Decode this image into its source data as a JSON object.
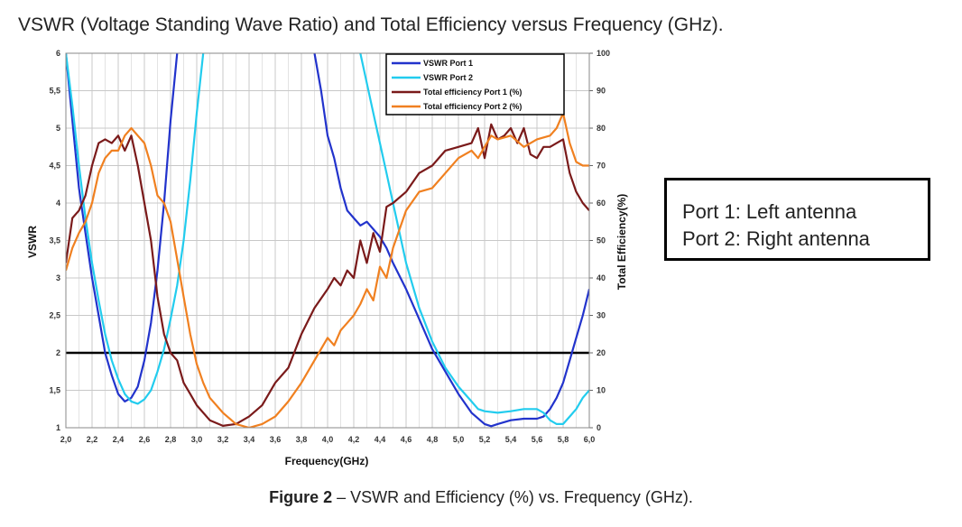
{
  "page": {
    "title": "VSWR (Voltage Standing Wave Ratio) and Total Efficiency versus Frequency (GHz).",
    "note_lines": [
      "Port 1: Left antenna",
      "Port 2: Right antenna"
    ],
    "caption_bold": "Figure 2",
    "caption_rest": " – VSWR and Efficiency (%) vs. Frequency (GHz)."
  },
  "chart_data": {
    "type": "line",
    "title": "",
    "xlabel": "Frequency(GHz)",
    "ylabel": "VSWR",
    "y2label": "Total Efficiency(%)",
    "xlim": [
      2.0,
      6.0
    ],
    "ylim": [
      1,
      6
    ],
    "y2lim": [
      0,
      100
    ],
    "x_ticks": [
      "2,0",
      "2,2",
      "2,4",
      "2,6",
      "2,8",
      "3,0",
      "3,2",
      "3,4",
      "3,6",
      "3,8",
      "4,0",
      "4,2",
      "4,4",
      "4,6",
      "4,8",
      "5,0",
      "5,2",
      "5,4",
      "5,6",
      "5,8",
      "6,0"
    ],
    "y_ticks": [
      "1",
      "1,5",
      "2",
      "2,5",
      "3",
      "3,5",
      "4",
      "4,5",
      "5",
      "5,5",
      "6"
    ],
    "y2_ticks": [
      "0",
      "10",
      "20",
      "30",
      "40",
      "50",
      "60",
      "70",
      "80",
      "90",
      "100"
    ],
    "grid": true,
    "legend_position": "top-right",
    "reference_line": {
      "axis": "left",
      "value": 2.0,
      "color": "#000000"
    },
    "series": [
      {
        "name": "VSWR Port 1",
        "axis": "left",
        "color": "#2233cc",
        "x": [
          2.0,
          2.05,
          2.1,
          2.15,
          2.2,
          2.25,
          2.3,
          2.35,
          2.4,
          2.45,
          2.5,
          2.55,
          2.6,
          2.65,
          2.7,
          2.75,
          2.8,
          2.85
        ],
        "y": [
          6.0,
          5.1,
          4.2,
          3.6,
          3.0,
          2.5,
          2.0,
          1.7,
          1.45,
          1.35,
          1.4,
          1.55,
          1.9,
          2.4,
          3.1,
          4.0,
          5.1,
          6.0
        ],
        "x2": [
          3.9,
          3.95,
          4.0,
          4.05,
          4.1,
          4.15,
          4.2,
          4.25,
          4.3,
          4.35,
          4.4,
          4.45,
          4.5,
          4.6,
          4.7,
          4.8,
          4.9,
          5.0,
          5.1,
          5.2,
          5.25,
          5.3,
          5.4,
          5.5,
          5.6,
          5.65,
          5.7,
          5.75,
          5.8,
          5.85,
          5.9,
          5.95,
          6.0
        ],
        "y2": [
          6.0,
          5.5,
          4.9,
          4.6,
          4.2,
          3.9,
          3.8,
          3.7,
          3.75,
          3.65,
          3.55,
          3.4,
          3.2,
          2.85,
          2.45,
          2.05,
          1.75,
          1.45,
          1.2,
          1.05,
          1.02,
          1.05,
          1.1,
          1.12,
          1.12,
          1.15,
          1.25,
          1.4,
          1.6,
          1.9,
          2.2,
          2.5,
          2.85
        ]
      },
      {
        "name": "VSWR Port 2",
        "axis": "left",
        "color": "#22ccee",
        "x": [
          2.0,
          2.05,
          2.1,
          2.15,
          2.2,
          2.25,
          2.3,
          2.35,
          2.4,
          2.45,
          2.5,
          2.55,
          2.6,
          2.65,
          2.7,
          2.75,
          2.8,
          2.85,
          2.9,
          2.95,
          3.0,
          3.05
        ],
        "y": [
          6.0,
          5.3,
          4.5,
          3.8,
          3.2,
          2.7,
          2.25,
          1.9,
          1.65,
          1.45,
          1.35,
          1.32,
          1.38,
          1.5,
          1.75,
          2.05,
          2.45,
          2.9,
          3.5,
          4.3,
          5.2,
          6.0
        ],
        "x2": [
          4.25,
          4.3,
          4.35,
          4.4,
          4.45,
          4.5,
          4.55,
          4.6,
          4.7,
          4.8,
          4.9,
          5.0,
          5.1,
          5.15,
          5.2,
          5.3,
          5.4,
          5.5,
          5.6,
          5.65,
          5.7,
          5.75,
          5.8,
          5.85,
          5.9,
          5.95,
          6.0
        ],
        "y2": [
          6.0,
          5.6,
          5.2,
          4.8,
          4.4,
          4.0,
          3.6,
          3.2,
          2.6,
          2.15,
          1.8,
          1.55,
          1.35,
          1.25,
          1.22,
          1.2,
          1.22,
          1.25,
          1.25,
          1.2,
          1.1,
          1.05,
          1.05,
          1.15,
          1.25,
          1.4,
          1.5
        ]
      },
      {
        "name": "Total efficiency Port 1 (%)",
        "axis": "right",
        "color": "#7a1a1a",
        "x": [
          2.0,
          2.05,
          2.1,
          2.15,
          2.2,
          2.25,
          2.3,
          2.35,
          2.4,
          2.45,
          2.5,
          2.55,
          2.6,
          2.65,
          2.7,
          2.75,
          2.8,
          2.85,
          2.9,
          2.95,
          3.0,
          3.1,
          3.2,
          3.3,
          3.4,
          3.5,
          3.6,
          3.7,
          3.8,
          3.9,
          4.0,
          4.05,
          4.1,
          4.15,
          4.2,
          4.25,
          4.3,
          4.35,
          4.4,
          4.45,
          4.5,
          4.6,
          4.7,
          4.8,
          4.9,
          5.0,
          5.1,
          5.15,
          5.2,
          5.25,
          5.3,
          5.35,
          5.4,
          5.45,
          5.5,
          5.55,
          5.6,
          5.65,
          5.7,
          5.75,
          5.8,
          5.85,
          5.9,
          5.95,
          6.0
        ],
        "y": [
          44,
          56,
          58,
          62,
          70,
          76,
          77,
          76,
          78,
          74,
          78,
          70,
          60,
          50,
          35,
          25,
          20,
          18,
          12,
          9,
          6,
          2,
          0.5,
          1,
          3,
          6,
          12,
          16,
          25,
          32,
          37,
          40,
          38,
          42,
          40,
          50,
          44,
          52,
          47,
          59,
          60,
          63,
          68,
          70,
          74,
          75,
          76,
          80,
          72,
          81,
          77,
          78,
          80,
          76,
          80,
          73,
          72,
          75,
          75,
          76,
          77,
          68,
          63,
          60,
          58
        ]
      },
      {
        "name": "Total efficiency Port 2 (%)",
        "axis": "right",
        "color": "#f08020",
        "x": [
          2.0,
          2.05,
          2.1,
          2.15,
          2.2,
          2.25,
          2.3,
          2.35,
          2.4,
          2.45,
          2.5,
          2.55,
          2.6,
          2.65,
          2.7,
          2.75,
          2.8,
          2.85,
          2.9,
          2.95,
          3.0,
          3.05,
          3.1,
          3.2,
          3.3,
          3.4,
          3.5,
          3.6,
          3.7,
          3.8,
          3.9,
          4.0,
          4.05,
          4.1,
          4.15,
          4.2,
          4.25,
          4.3,
          4.35,
          4.4,
          4.45,
          4.5,
          4.6,
          4.7,
          4.8,
          4.9,
          5.0,
          5.1,
          5.15,
          5.2,
          5.25,
          5.3,
          5.4,
          5.5,
          5.6,
          5.7,
          5.75,
          5.8,
          5.85,
          5.9,
          5.95,
          6.0
        ],
        "y": [
          42,
          48,
          52,
          55,
          60,
          68,
          72,
          74,
          74,
          78,
          80,
          78,
          76,
          70,
          62,
          60,
          55,
          45,
          35,
          25,
          17,
          12,
          8,
          4,
          1,
          0,
          1,
          3,
          7,
          12,
          18,
          24,
          22,
          26,
          28,
          30,
          33,
          37,
          34,
          43,
          40,
          48,
          58,
          63,
          64,
          68,
          72,
          74,
          72,
          75,
          78,
          77,
          78,
          75,
          77,
          78,
          80,
          84,
          76,
          71,
          70,
          70
        ]
      }
    ]
  }
}
